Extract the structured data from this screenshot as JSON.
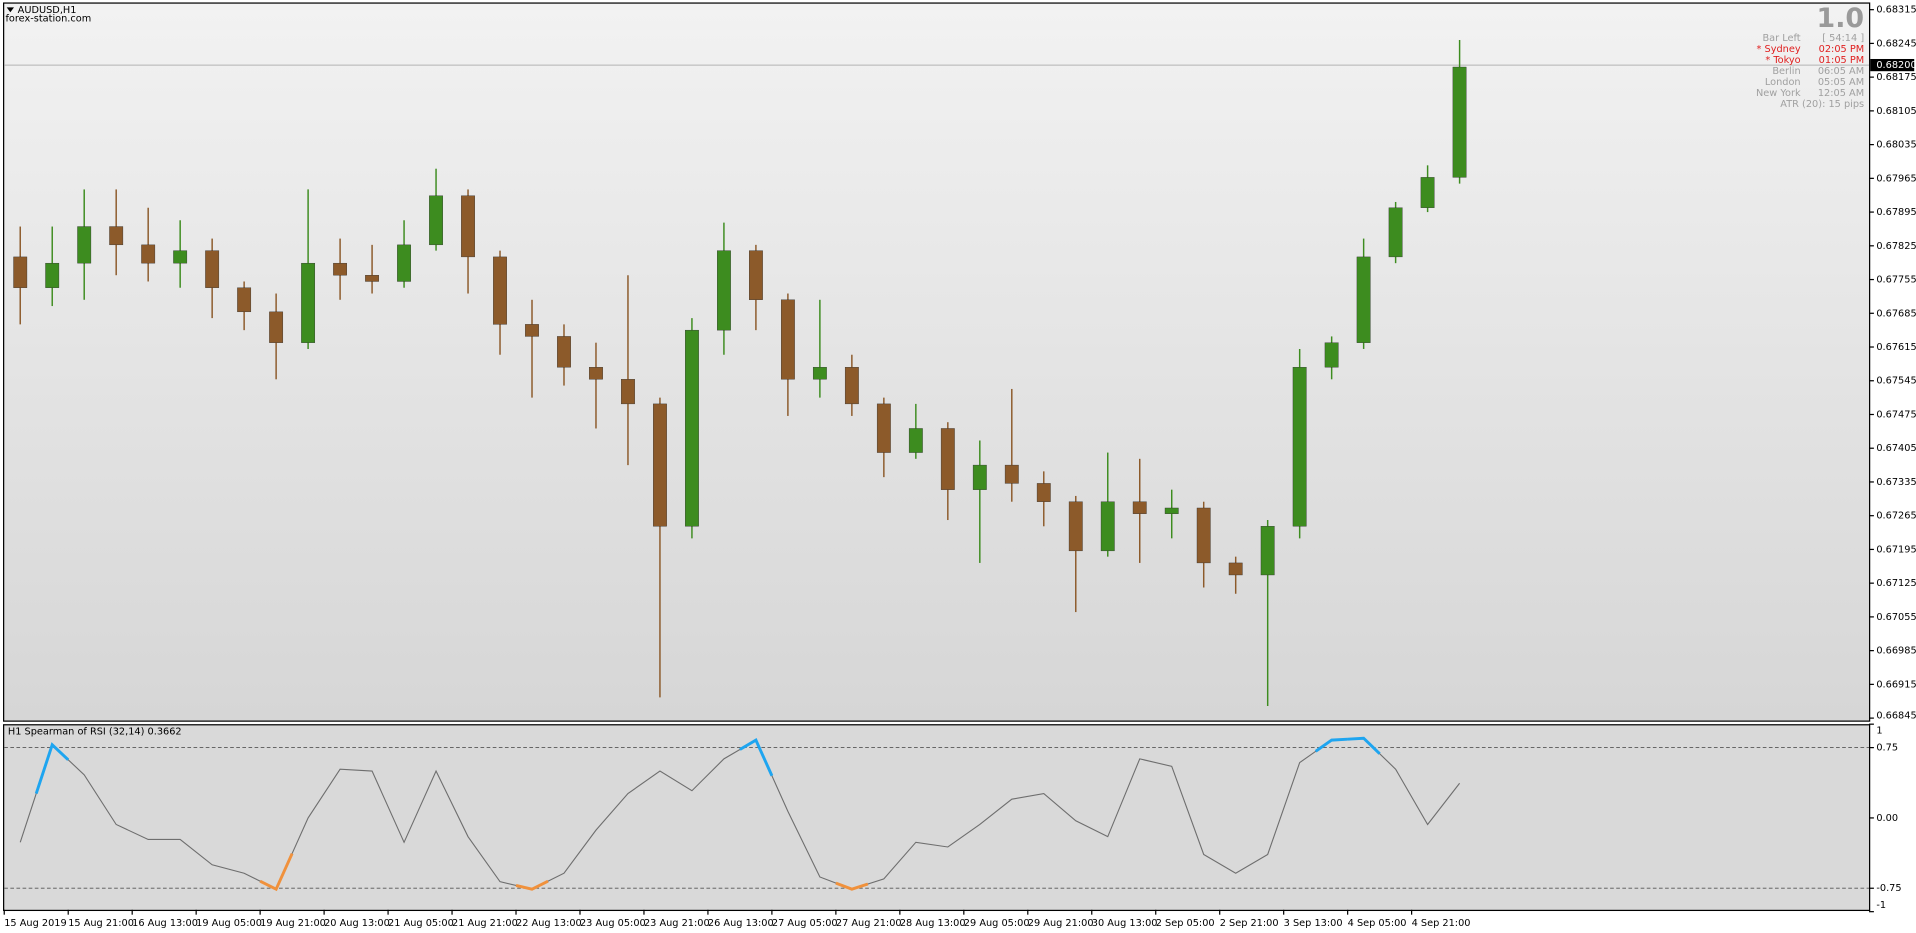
{
  "chart_data": [
    {
      "type": "candlestick",
      "title": "AUDUSD,H1",
      "subtitle": "forex-station.com",
      "open": [
        0.67802,
        0.67738,
        0.67789,
        0.67865,
        0.67827,
        0.67789,
        0.67815,
        0.67738,
        0.67688,
        0.67624,
        0.67789,
        0.67764,
        0.67751,
        0.67827,
        0.67929,
        0.67802,
        0.67662,
        0.67637,
        0.67573,
        0.67548,
        0.67497,
        0.67243,
        0.6765,
        0.67815,
        0.67713,
        0.67548,
        0.67573,
        0.67497,
        0.67396,
        0.67446,
        0.67319,
        0.6737,
        0.67332,
        0.67294,
        0.67192,
        0.67294,
        0.67269,
        0.67281,
        0.67167,
        0.67142,
        0.67243,
        0.67573,
        0.67624,
        0.67802,
        0.67904,
        0.67967
      ],
      "high": [
        0.67865,
        0.67865,
        0.67942,
        0.67942,
        0.67904,
        0.67878,
        0.6784,
        0.67751,
        0.67726,
        0.67942,
        0.6784,
        0.67827,
        0.67878,
        0.67985,
        0.67942,
        0.67815,
        0.67713,
        0.67662,
        0.67624,
        0.67764,
        0.6751,
        0.67675,
        0.67873,
        0.67827,
        0.67726,
        0.67713,
        0.67599,
        0.6751,
        0.67497,
        0.67459,
        0.67421,
        0.67528,
        0.67357,
        0.67306,
        0.67396,
        0.67383,
        0.67319,
        0.67294,
        0.6718,
        0.67256,
        0.67611,
        0.67637,
        0.6784,
        0.67916,
        0.67992,
        0.68252
      ],
      "low": [
        0.67662,
        0.677,
        0.67713,
        0.67764,
        0.67751,
        0.67738,
        0.67675,
        0.6765,
        0.67548,
        0.67611,
        0.67713,
        0.67726,
        0.67738,
        0.67815,
        0.67726,
        0.67599,
        0.6751,
        0.67535,
        0.67446,
        0.6737,
        0.66888,
        0.67218,
        0.67599,
        0.6765,
        0.67472,
        0.6751,
        0.67472,
        0.67345,
        0.67383,
        0.67256,
        0.67167,
        0.67294,
        0.67243,
        0.67065,
        0.6718,
        0.67167,
        0.67218,
        0.67116,
        0.67103,
        0.6687,
        0.67218,
        0.67548,
        0.67611,
        0.67789,
        0.67895,
        0.67954
      ],
      "close": [
        0.67738,
        0.67789,
        0.67865,
        0.67827,
        0.67789,
        0.67815,
        0.67738,
        0.67688,
        0.67624,
        0.67789,
        0.67764,
        0.67751,
        0.67827,
        0.67929,
        0.67802,
        0.67662,
        0.67637,
        0.67573,
        0.67548,
        0.67497,
        0.67243,
        0.6765,
        0.67815,
        0.67713,
        0.67548,
        0.67573,
        0.67497,
        0.67396,
        0.67446,
        0.67319,
        0.6737,
        0.67332,
        0.67294,
        0.67192,
        0.67294,
        0.67269,
        0.67281,
        0.67167,
        0.67142,
        0.67243,
        0.67573,
        0.67624,
        0.67802,
        0.67904,
        0.67967,
        0.68196
      ],
      "up_color": "#3d8c1f",
      "down_color": "#8c5a2a",
      "ylim": [
        0.6684,
        0.6833
      ],
      "yticks": [
        0.68315,
        0.68245,
        0.68175,
        0.68105,
        0.68035,
        0.67965,
        0.67895,
        0.67825,
        0.67755,
        0.67685,
        0.67615,
        0.67545,
        0.67475,
        0.67405,
        0.67335,
        0.67265,
        0.67195,
        0.67125,
        0.67055,
        0.66985,
        0.66915,
        0.66845
      ],
      "current_price": {
        "value": 0.682,
        "label": "0.68200"
      },
      "xlim": [
        0,
        58.3
      ],
      "xticks": [
        {
          "value": 0,
          "label": "15 Aug 2019"
        },
        {
          "value": 2,
          "label": "15 Aug 21:00"
        },
        {
          "value": 4,
          "label": "16 Aug 13:00"
        },
        {
          "value": 6,
          "label": "19 Aug 05:00"
        },
        {
          "value": 8,
          "label": "19 Aug 21:00"
        },
        {
          "value": 10,
          "label": "20 Aug 13:00"
        },
        {
          "value": 12,
          "label": "21 Aug 05:00"
        },
        {
          "value": 14,
          "label": "21 Aug 21:00"
        },
        {
          "value": 16,
          "label": "22 Aug 13:00"
        },
        {
          "value": 18,
          "label": "23 Aug 05:00"
        },
        {
          "value": 20,
          "label": "23 Aug 21:00"
        },
        {
          "value": 22,
          "label": "26 Aug 13:00"
        },
        {
          "value": 24,
          "label": "27 Aug 05:00"
        },
        {
          "value": 26,
          "label": "27 Aug 21:00"
        },
        {
          "value": 28,
          "label": "28 Aug 13:00"
        },
        {
          "value": 30,
          "label": "29 Aug 05:00"
        },
        {
          "value": 32,
          "label": "29 Aug 21:00"
        },
        {
          "value": 34,
          "label": "30 Aug 13:00"
        },
        {
          "value": 36,
          "label": "2 Sep 05:00"
        },
        {
          "value": 38,
          "label": "2 Sep 21:00"
        },
        {
          "value": 40,
          "label": "3 Sep 13:00"
        },
        {
          "value": 42,
          "label": "4 Sep 05:00"
        },
        {
          "value": 44,
          "label": "4 Sep 21:00"
        }
      ],
      "info": {
        "big": "1.0",
        "rows": [
          {
            "name": "Bar Left",
            "value": "[ 54:14 ]",
            "color": "#a0a0a0"
          },
          {
            "name": "* Sydney",
            "value": "02:05 PM",
            "color": "#e02020"
          },
          {
            "name": "* Tokyo",
            "value": "01:05 PM",
            "color": "#e02020"
          },
          {
            "name": "Berlin",
            "value": "06:05 AM",
            "color": "#a0a0a0"
          },
          {
            "name": "London",
            "value": "05:05 AM",
            "color": "#a0a0a0"
          },
          {
            "name": "New York",
            "value": "12:05 AM",
            "color": "#a0a0a0"
          }
        ],
        "atr": "ATR (20): 15 pips"
      }
    },
    {
      "type": "line",
      "title": "H1 Spearman of RSI (32,14) 0.3662",
      "values": [
        -0.26,
        0.78,
        0.46,
        -0.07,
        -0.23,
        -0.23,
        -0.5,
        -0.59,
        -0.76,
        0.0,
        0.52,
        0.5,
        -0.26,
        0.5,
        -0.2,
        -0.68,
        -0.76,
        -0.59,
        -0.13,
        0.26,
        0.5,
        0.29,
        0.63,
        0.83,
        0.07,
        -0.63,
        -0.76,
        -0.65,
        -0.26,
        -0.31,
        -0.07,
        0.2,
        0.26,
        -0.03,
        -0.2,
        0.63,
        0.55,
        -0.39,
        -0.59,
        -0.39,
        0.59,
        0.83,
        0.85,
        0.52,
        -0.07,
        0.37
      ],
      "color": "#6e6e6e",
      "levels": [
        0.75,
        -0.75
      ],
      "upper_color": "#1ea5f0",
      "lower_color": "#f0913c",
      "ylim": [
        -0.98,
        1.0
      ],
      "yticks": [
        1,
        0.75,
        {
          "value": 0,
          "label": "0.00"
        },
        -0.75,
        -1
      ]
    }
  ]
}
